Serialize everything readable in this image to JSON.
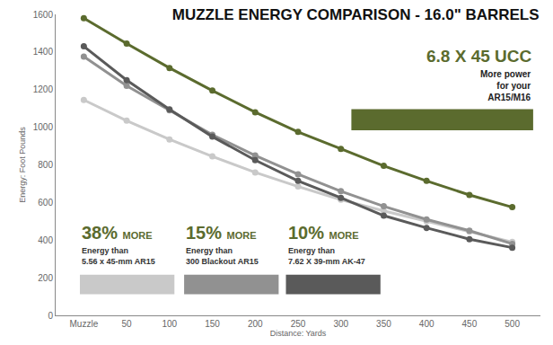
{
  "chart_data": {
    "type": "line",
    "title": "MUZZLE ENERGY COMPARISON - 16.0\" BARRELS",
    "x_label": "Distance: Yards",
    "y_label": "Energy: Foot Pounds",
    "categories": [
      "Muzzle",
      "50",
      "100",
      "150",
      "200",
      "250",
      "300",
      "350",
      "400",
      "450",
      "500"
    ],
    "series": [
      {
        "name": "6.8 X 45 UCC",
        "color": "#5b6b2e",
        "values": [
          1580,
          1445,
          1315,
          1195,
          1080,
          975,
          885,
          795,
          715,
          640,
          575
        ]
      },
      {
        "name": "5.56 x 45-mm AR15",
        "color": "#c9c9c9",
        "values": [
          1145,
          1035,
          935,
          845,
          760,
          685,
          615,
          555,
          500,
          445,
          390
        ]
      },
      {
        "name": "300 Blackout AR15",
        "color": "#919191",
        "values": [
          1375,
          1220,
          1090,
          960,
          850,
          750,
          660,
          580,
          510,
          450,
          380
        ]
      },
      {
        "name": "7.62 X 39-mm AK-47",
        "color": "#5a5a5a",
        "values": [
          1430,
          1250,
          1095,
          950,
          825,
          715,
          625,
          530,
          465,
          405,
          360
        ]
      }
    ],
    "annotations": [
      {
        "lines": [
          "More power",
          "for your",
          "AR15/M16"
        ]
      },
      {
        "figure": "38%",
        "word": "MORE",
        "lines": [
          "Energy than"
        ]
      },
      {
        "figure": "15%",
        "word": "MORE",
        "lines": [
          "Energy than"
        ]
      },
      {
        "figure": "10%",
        "word": "MORE",
        "lines": [
          "Energy than"
        ]
      }
    ],
    "ylim": [
      0,
      1600
    ],
    "yticks": [
      0,
      200,
      400,
      600,
      800,
      1000,
      1200,
      1400,
      1600
    ],
    "marker": "circle",
    "grid": false
  }
}
